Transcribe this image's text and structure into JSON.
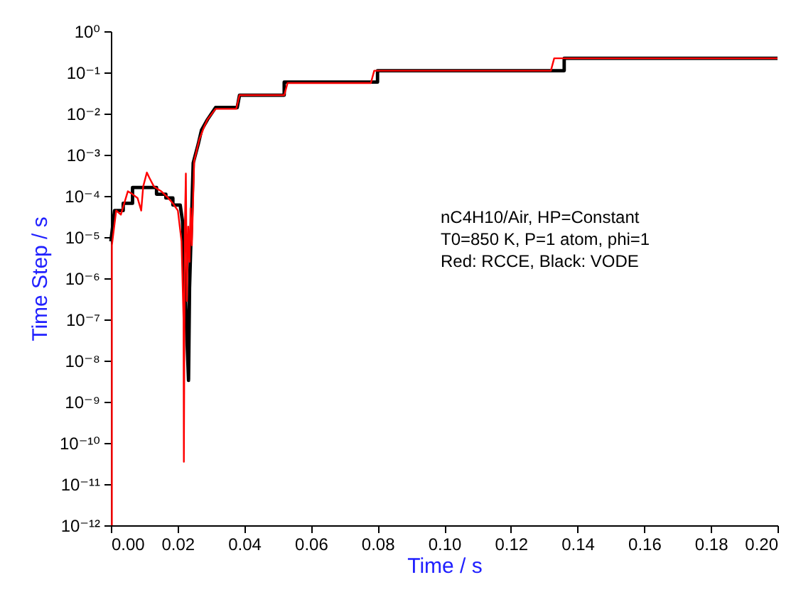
{
  "chart_data": {
    "type": "line",
    "xlabel": "Time / s",
    "ylabel": "Time Step / s",
    "log": "y",
    "grid": false,
    "xlim": [
      0,
      0.2
    ],
    "xticks": [
      {
        "value": 0,
        "label": "0.00"
      },
      {
        "value": 0.02,
        "label": "0.02"
      },
      {
        "value": 0.04,
        "label": "0.04"
      },
      {
        "value": 0.06,
        "label": "0.06"
      },
      {
        "value": 0.08,
        "label": "0.08"
      },
      {
        "value": 0.1,
        "label": "0.10"
      },
      {
        "value": 0.12,
        "label": "0.12"
      },
      {
        "value": 0.14,
        "label": "0.14"
      },
      {
        "value": 0.16,
        "label": "0.16"
      },
      {
        "value": 0.18,
        "label": "0.18"
      },
      {
        "value": 0.2,
        "label": "0.20"
      }
    ],
    "ylim": [
      1e-12,
      1
    ],
    "yticks": [
      {
        "value": 1e-12,
        "label": "10⁻¹²"
      },
      {
        "value": 1e-11,
        "label": "10⁻¹¹"
      },
      {
        "value": 1e-10,
        "label": "10⁻¹⁰"
      },
      {
        "value": 1e-09,
        "label": "10⁻⁹"
      },
      {
        "value": 1e-08,
        "label": "10⁻⁸"
      },
      {
        "value": 1e-07,
        "label": "10⁻⁷"
      },
      {
        "value": 1e-06,
        "label": "10⁻⁶"
      },
      {
        "value": 1e-05,
        "label": "10⁻⁵"
      },
      {
        "value": 0.0001,
        "label": "10⁻⁴"
      },
      {
        "value": 0.001,
        "label": "10⁻³"
      },
      {
        "value": 0.01,
        "label": "10⁻²"
      },
      {
        "value": 0.1,
        "label": "10⁻¹"
      },
      {
        "value": 1,
        "label": "10⁰"
      }
    ],
    "annotations": [
      "nC4H10/Air, HP=Constant",
      "T0=850 K, P=1 atom, phi=1",
      "Red: RCCE, Black: VODE"
    ],
    "series": [
      {
        "color": "#000000",
        "x": [
          0,
          0.0011,
          0.0037,
          0.0037,
          0.0065,
          0.0065,
          0.0137,
          0.0137,
          0.0165,
          0.0165,
          0.0186,
          0.0186,
          0.0208,
          0.0215,
          0.0233,
          0.0236,
          0.0247,
          0.0262,
          0.0272,
          0.029,
          0.0314,
          0.0379,
          0.0386,
          0.052,
          0.052,
          0.08,
          0.08,
          0.136,
          0.136,
          0.2
        ],
        "values": [
          7.9e-06,
          4.4e-05,
          4.4e-05,
          6.6e-05,
          6.6e-05,
          0.00016,
          0.00016,
          0.00011,
          0.00011,
          8.9e-05,
          8.9e-05,
          6e-05,
          6e-05,
          2.4e-05,
          3.3e-09,
          5.8e-07,
          0.00063,
          0.0018,
          0.004,
          0.0072,
          0.014,
          0.014,
          0.028,
          0.028,
          0.058,
          0.058,
          0.11,
          0.11,
          0.22,
          0.22
        ]
      },
      {
        "color": "#ff0000",
        "x": [
          0.0003,
          0.0003,
          0.0016,
          0.003,
          0.0051,
          0.0065,
          0.008,
          0.0091,
          0.0097,
          0.0108,
          0.0115,
          0.0129,
          0.0151,
          0.0172,
          0.0186,
          0.0201,
          0.0212,
          0.0218,
          0.0219,
          0.0222,
          0.0225,
          0.0228,
          0.0232,
          0.0236,
          0.0239,
          0.0243,
          0.025,
          0.0265,
          0.0279,
          0.029,
          0.0314,
          0.0376,
          0.0386,
          0.052,
          0.053,
          0.078,
          0.079,
          0.132,
          0.133,
          0.2
        ],
        "values": [
          1e-12,
          6.3e-06,
          4.4e-05,
          3.5e-05,
          0.00013,
          0.00011,
          8.9e-05,
          4.4e-05,
          0.00017,
          0.00037,
          0.00028,
          0.00017,
          0.00013,
          8.9e-05,
          6.6e-05,
          4.4e-05,
          7.9e-06,
          1e-07,
          3.5e-11,
          1.8e-05,
          0.00035,
          2.8e-07,
          1.8e-05,
          2.5e-06,
          5e-05,
          6.3e-06,
          0.00071,
          0.0023,
          0.0046,
          0.0072,
          0.013,
          0.013,
          0.028,
          0.028,
          0.055,
          0.055,
          0.11,
          0.11,
          0.22,
          0.22
        ]
      }
    ]
  }
}
